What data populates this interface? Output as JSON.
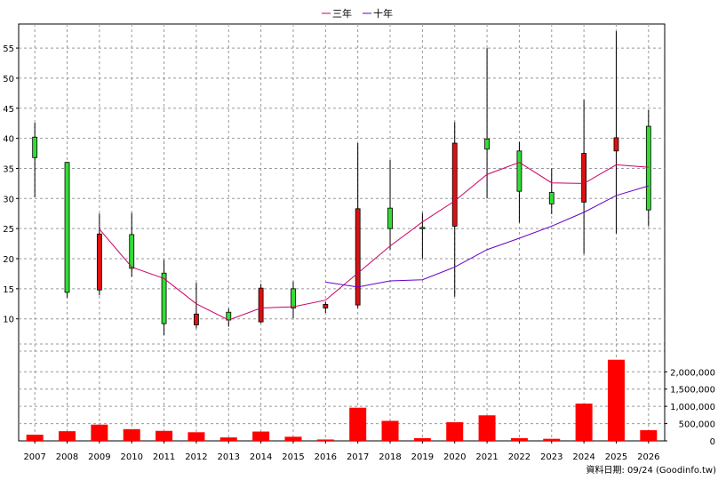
{
  "legend": {
    "items": [
      {
        "label": "三年",
        "color": "#cc0066"
      },
      {
        "label": "十年",
        "color": "#6600cc"
      }
    ]
  },
  "footer": {
    "source_text": "資料日期: 09/24  (Goodinfo.tw)"
  },
  "colors": {
    "up": "#33dd33",
    "down": "#dd1111",
    "volume": "#ff0000",
    "ma3": "#cc0066",
    "ma10": "#6600cc",
    "grid": "#999999"
  },
  "chart_data": [
    {
      "type": "candlestick",
      "categories": [
        "2007",
        "2008",
        "2009",
        "2010",
        "2011",
        "2012",
        "2013",
        "2014",
        "2015",
        "2016",
        "2017",
        "2018",
        "2019",
        "2020",
        "2021",
        "2022",
        "2023",
        "2024",
        "2025",
        "2026"
      ],
      "ohlc": [
        {
          "open": 36.8,
          "high": 42.6,
          "low": 30.2,
          "close": 40.2
        },
        {
          "open": 14.4,
          "high": 36.1,
          "low": 13.5,
          "close": 36.0
        },
        {
          "open": 24.1,
          "high": 27.5,
          "low": 13.9,
          "close": 14.8
        },
        {
          "open": 18.4,
          "high": 27.6,
          "low": 17.0,
          "close": 24.0
        },
        {
          "open": 9.2,
          "high": 19.8,
          "low": 7.3,
          "close": 17.6
        },
        {
          "open": 10.8,
          "high": 16.0,
          "low": 8.4,
          "close": 9.0
        },
        {
          "open": 9.8,
          "high": 11.7,
          "low": 8.7,
          "close": 11.1
        },
        {
          "open": 15.1,
          "high": 15.8,
          "low": 9.3,
          "close": 9.5
        },
        {
          "open": 11.8,
          "high": 16.2,
          "low": 10.1,
          "close": 15.0
        },
        {
          "open": 12.4,
          "high": 12.8,
          "low": 11.0,
          "close": 11.8
        },
        {
          "open": 28.3,
          "high": 39.2,
          "low": 11.8,
          "close": 12.3
        },
        {
          "open": 25.0,
          "high": 36.4,
          "low": 21.5,
          "close": 28.4
        },
        {
          "open": 25.0,
          "high": 27.6,
          "low": 20.0,
          "close": 25.2
        },
        {
          "open": 39.2,
          "high": 42.7,
          "low": 13.7,
          "close": 25.4
        },
        {
          "open": 38.2,
          "high": 55.0,
          "low": 30.0,
          "close": 39.9
        },
        {
          "open": 31.2,
          "high": 39.4,
          "low": 26.0,
          "close": 37.9
        },
        {
          "open": 29.1,
          "high": 35.0,
          "low": 27.4,
          "close": 31.0
        },
        {
          "open": 37.5,
          "high": 46.4,
          "low": 20.8,
          "close": 29.4
        },
        {
          "open": 40.1,
          "high": 57.8,
          "low": 24.2,
          "close": 37.9
        },
        {
          "open": 28.1,
          "high": 44.7,
          "low": 25.4,
          "close": 42.0
        }
      ],
      "ma3": [
        null,
        null,
        24.9,
        18.6,
        16.7,
        12.5,
        9.8,
        11.8,
        12.0,
        13.1,
        17.6,
        22.1,
        26.1,
        29.6,
        34.0,
        36.0,
        32.6,
        32.5,
        35.6,
        35.2
      ],
      "ma10": [
        null,
        null,
        null,
        null,
        null,
        null,
        null,
        null,
        null,
        16.1,
        15.3,
        16.3,
        16.5,
        18.6,
        21.5,
        23.4,
        25.4,
        27.7,
        30.5,
        32.1
      ],
      "ylim": [
        7,
        59
      ],
      "yticks": [
        10,
        15,
        20,
        25,
        30,
        35,
        40,
        45,
        50,
        55
      ]
    },
    {
      "type": "bar",
      "categories": [
        "2007",
        "2008",
        "2009",
        "2010",
        "2011",
        "2012",
        "2013",
        "2014",
        "2015",
        "2016",
        "2017",
        "2018",
        "2019",
        "2020",
        "2021",
        "2022",
        "2023",
        "2024",
        "2025",
        "2026"
      ],
      "values": [
        180000,
        280000,
        470000,
        340000,
        290000,
        250000,
        100000,
        270000,
        120000,
        40000,
        960000,
        580000,
        80000,
        540000,
        740000,
        80000,
        60000,
        1080000,
        2350000,
        310000
      ],
      "ylim": [
        0,
        2600000
      ],
      "yticks": [
        0,
        500000,
        1000000,
        1500000,
        2000000
      ],
      "ytick_labels": [
        "0",
        "500,000",
        "1,000,000",
        "1,500,000",
        "2,000,000"
      ]
    }
  ]
}
